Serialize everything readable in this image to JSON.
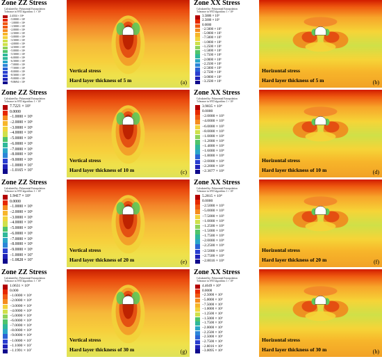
{
  "legend_meta": {
    "calc": "Calculated by: Polynomial Extrapolation",
    "tol5": "Tolerance in SVD algorithm: 1 × 10⁵",
    "tol7": "Tolerance in SVD algorithm: 1 × 10⁷",
    "tol8": "Tolerance in SVD algorithm: 1 × 10⁸"
  },
  "colors": {
    "scale": [
      "#b30000",
      "#e62800",
      "#f05a14",
      "#f58c1e",
      "#f7b52a",
      "#f2d33a",
      "#cfe04a",
      "#8fd35a",
      "#4fc46b",
      "#2fb89a",
      "#2aa6c8",
      "#2b86d8",
      "#2b63d6",
      "#2a3fd0",
      "#1f22b8",
      "#0f0a8c"
    ]
  },
  "panels": [
    {
      "id": "a",
      "legend": {
        "title": "Zone ZZ Stress",
        "tol_key": "tol5",
        "labels": [
          "2.4334 × 10⁴",
          "−5.0000 × 10⁵",
          "−1.0000 × 10⁶",
          "−1.5000 × 10⁶",
          "−2.0000 × 10⁶",
          "−2.5000 × 10⁶",
          "−3.0000 × 10⁶",
          "−3.5000 × 10⁶",
          "−4.0000 × 10⁶",
          "−4.5000 × 10⁶",
          "−5.0000 × 10⁶",
          "−5.5000 × 10⁶",
          "−6.0000 × 10⁶",
          "−6.5000 × 10⁶",
          "−7.0000 × 10⁶",
          "−7.5000 × 10⁶",
          "−8.0000 × 10⁶",
          "−8.5000 × 10⁶",
          "−9.0000 × 10⁶",
          "−9.8694 × 10⁶"
        ]
      },
      "plot": {
        "caption1": "Vertical stress",
        "caption2": "Hard layer thickness of 5 m",
        "letter": "(a)"
      }
    },
    {
      "id": "b",
      "legend": {
        "title": "Zone XX Stress",
        "tol_key": "tol5",
        "labels": [
          "3.5886 × 10⁵",
          "2.5000 × 10⁵",
          "0.0000",
          "−2.5000 × 10⁵",
          "−5.0000 × 10⁵",
          "−7.5000 × 10⁵",
          "−1.0000 × 10⁶",
          "−1.2500 × 10⁶",
          "−1.5000 × 10⁶",
          "−1.7500 × 10⁶",
          "−2.0000 × 10⁶",
          "−2.2500 × 10⁶",
          "−2.5000 × 10⁶",
          "−2.7500 × 10⁶",
          "−3.0000 × 10⁶",
          "−3.2500 × 10⁶"
        ]
      },
      "plot": {
        "caption1": "Horizontal stress",
        "caption2": "Hard layer thickness of 5 m",
        "letter": "(b)"
      }
    },
    {
      "id": "c",
      "legend": {
        "title": "Zone ZZ Stress",
        "tol_key": "tol5",
        "labels": [
          "7.7221 × 10³",
          "0.0000",
          "−1.0000 × 10⁶",
          "−2.0000 × 10⁶",
          "−3.0000 × 10⁶",
          "−4.0000 × 10⁶",
          "−5.0000 × 10⁶",
          "−6.0000 × 10⁶",
          "−7.0000 × 10⁶",
          "−8.0000 × 10⁶",
          "−9.0000 × 10⁶",
          "−1.0000 × 10⁷",
          "−1.0165 × 10⁷"
        ]
      },
      "plot": {
        "caption1": "Vertical stress",
        "caption2": "Hard layer thickness of 10 m",
        "letter": "(c)"
      }
    },
    {
      "id": "d",
      "legend": {
        "title": "Zone XX Stress",
        "tol_key": "tol5",
        "labels": [
          "3.9835 × 10⁴",
          "0.0000",
          "−2.0000 × 10⁵",
          "−4.0000 × 10⁵",
          "−6.0000 × 10⁵",
          "−8.0000 × 10⁵",
          "−1.0000 × 10⁶",
          "−1.2000 × 10⁶",
          "−1.4000 × 10⁶",
          "−1.6000 × 10⁶",
          "−1.8000 × 10⁶",
          "−2.0000 × 10⁶",
          "−2.2000 × 10⁶",
          "−2.3077 × 10⁶"
        ]
      },
      "plot": {
        "caption1": "Horizontal stress",
        "caption2": "Hard layer thickness of 10 m",
        "letter": "(d)"
      }
    },
    {
      "id": "e",
      "legend": {
        "title": "Zone ZZ Stress",
        "tol_key": "tol5",
        "labels": [
          "1.9417 × 10³",
          "0.0000",
          "−1.0000 × 10⁶",
          "−2.0000 × 10⁶",
          "−3.0000 × 10⁶",
          "−4.0000 × 10⁶",
          "−5.0000 × 10⁶",
          "−6.0000 × 10⁶",
          "−7.0000 × 10⁶",
          "−8.0000 × 10⁶",
          "−9.0000 × 10⁶",
          "−1.0000 × 10⁷",
          "−1.0828 × 10⁷"
        ]
      },
      "plot": {
        "caption1": "Vertical stress",
        "caption2": "Hard layer thickness of 20 m",
        "letter": "(e)"
      }
    },
    {
      "id": "f",
      "legend": {
        "title": "Zone XX Stress",
        "tol_key": "tol5",
        "labels": [
          "5.2815 × 10⁴",
          "0.0000",
          "−2.5000 × 10⁵",
          "−5.0000 × 10⁵",
          "−7.5000 × 10⁵",
          "−1.0000 × 10⁶",
          "−1.2500 × 10⁶",
          "−1.5000 × 10⁶",
          "−1.7500 × 10⁶",
          "−2.0000 × 10⁶",
          "−2.2500 × 10⁶",
          "−2.5000 × 10⁶",
          "−2.7500 × 10⁶",
          "−2.8016 × 10⁶"
        ]
      },
      "plot": {
        "caption1": "Horizontal stress",
        "caption2": "Hard layer thickness of 20 m",
        "letter": "(f)"
      }
    },
    {
      "id": "g",
      "legend": {
        "title": "Zone ZZ Stress",
        "tol_key": "tol5",
        "labels": [
          "1.0631 × 10⁴",
          "0.000",
          "−1.0000 × 10⁶",
          "−2.0000 × 10⁶",
          "−3.0000 × 10⁶",
          "−4.0000 × 10⁶",
          "−5.0000 × 10⁶",
          "−6.0000 × 10⁶",
          "−7.0000 × 10⁶",
          "−8.0000 × 10⁶",
          "−9.0000 × 10⁶",
          "−1.0000 × 10⁷",
          "−1.1000 × 10⁷",
          "−1.1991 × 10⁷"
        ]
      },
      "plot": {
        "caption1": "Vertical stress",
        "caption2": "Hard layer thickness of 30 m",
        "letter": "(g)"
      }
    },
    {
      "id": "h",
      "legend": {
        "title": "Zone XX Stress",
        "tol_key": "tol5",
        "labels": [
          "4.4649 × 10⁴",
          "0.0000",
          "−2.5000 × 10⁵",
          "−5.0000 × 10⁵",
          "−7.5000 × 10⁵",
          "−1.0000 × 10⁶",
          "−1.2500 × 10⁶",
          "−1.5000 × 10⁶",
          "−1.7500 × 10⁶",
          "−2.0000 × 10⁶",
          "−2.2500 × 10⁶",
          "−2.5000 × 10⁶",
          "−2.7500 × 10⁶",
          "−2.8016 × 10⁶",
          "−3.0095 × 10⁶"
        ]
      },
      "plot": {
        "caption1": "Horizontal stress",
        "caption2": "Hard layer thickness of 30 m",
        "letter": "(h)"
      }
    }
  ]
}
